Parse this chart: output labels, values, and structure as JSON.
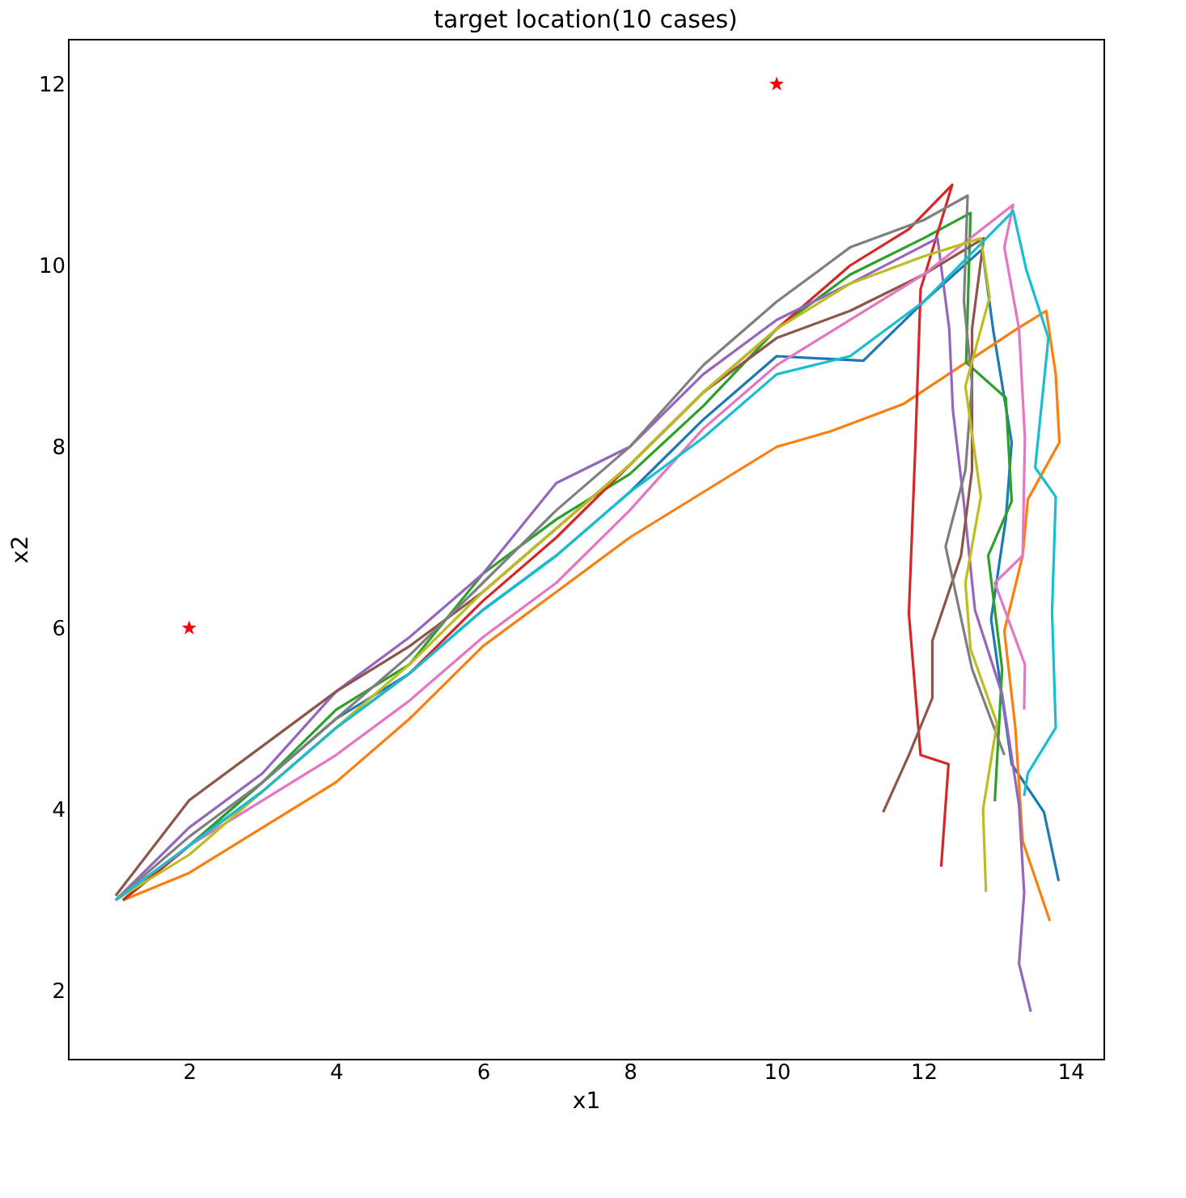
{
  "chart_data": {
    "type": "line",
    "title": "target location(10 cases)",
    "xlabel": "x1",
    "ylabel": "x2",
    "xlim": [
      0.35,
      14.45
    ],
    "ylim": [
      1.25,
      12.5
    ],
    "xticks": [
      2,
      4,
      6,
      8,
      10,
      12,
      14
    ],
    "yticks": [
      2,
      4,
      6,
      8,
      10,
      12
    ],
    "grid": false,
    "line_style": "solid",
    "marker": "none",
    "series": [
      {
        "color": "#1f77b4",
        "x": [
          1.1,
          2,
          3,
          4,
          5,
          6,
          7,
          8,
          9,
          10,
          11.18,
          12,
          12.8,
          12.95,
          13.2,
          13.12,
          12.92,
          13.2,
          13.64,
          13.84
        ],
        "values": [
          3.0,
          3.6,
          4.3,
          5.0,
          5.5,
          6.2,
          6.8,
          7.5,
          8.3,
          9.0,
          8.95,
          9.6,
          10.18,
          9.28,
          8.05,
          7.2,
          6.1,
          4.5,
          3.97,
          3.21
        ]
      },
      {
        "color": "#ff7f0e",
        "x": [
          1.1,
          2,
          3,
          4,
          5,
          6,
          7,
          8,
          9,
          10,
          10.73,
          11.72,
          13.27,
          13.67,
          13.8,
          13.85,
          13.42,
          13.35,
          13.1,
          13.25,
          13.35,
          13.72
        ],
        "values": [
          3.0,
          3.3,
          3.8,
          4.3,
          5.0,
          5.8,
          6.4,
          7.0,
          7.5,
          8.0,
          8.17,
          8.47,
          9.3,
          9.5,
          8.8,
          8.05,
          7.42,
          6.8,
          5.97,
          4.9,
          3.65,
          2.77
        ]
      },
      {
        "color": "#2ca02c",
        "x": [
          1.1,
          2,
          3,
          4,
          5,
          6,
          7,
          8,
          9,
          10,
          11,
          12,
          12.64,
          12.58,
          13.12,
          13.2,
          12.88,
          13.07,
          12.97
        ],
        "values": [
          3.0,
          3.6,
          4.3,
          5.1,
          5.6,
          6.6,
          7.2,
          7.7,
          8.45,
          9.3,
          9.9,
          10.3,
          10.58,
          8.93,
          8.54,
          7.4,
          6.8,
          5.55,
          4.09
        ]
      },
      {
        "color": "#d62728",
        "x": [
          1.1,
          2,
          3,
          4,
          5,
          6,
          7,
          8,
          9,
          10,
          11,
          11.8,
          12.39,
          11.96,
          11.89,
          11.8,
          11.96,
          12.34,
          12.24
        ],
        "values": [
          3.0,
          3.6,
          4.2,
          4.9,
          5.5,
          6.3,
          7.0,
          7.8,
          8.6,
          9.3,
          10.0,
          10.4,
          10.89,
          9.74,
          8.04,
          6.16,
          4.6,
          4.5,
          3.37
        ]
      },
      {
        "color": "#9467bd",
        "x": [
          1.0,
          2,
          3,
          4,
          5,
          6,
          7,
          8,
          9,
          10,
          11,
          12.19,
          12.35,
          12.4,
          12.54,
          12.7,
          13.07,
          13.3,
          13.37,
          13.3,
          13.46
        ],
        "values": [
          3.0,
          3.8,
          4.4,
          5.3,
          5.9,
          6.6,
          7.6,
          8.0,
          8.8,
          9.4,
          9.8,
          10.3,
          9.3,
          8.4,
          7.45,
          6.2,
          5.27,
          4.05,
          3.08,
          2.3,
          1.77
        ]
      },
      {
        "color": "#8c564b",
        "x": [
          1.0,
          2,
          3,
          4,
          5,
          6,
          7,
          8,
          9,
          10,
          11,
          12,
          12.82,
          12.66,
          12.66,
          12.51,
          12.12,
          12.12,
          11.8,
          11.45
        ],
        "values": [
          3.05,
          4.1,
          4.7,
          5.3,
          5.8,
          6.4,
          7.1,
          7.8,
          8.6,
          9.2,
          9.5,
          9.9,
          10.3,
          9.3,
          7.74,
          6.8,
          5.86,
          5.23,
          4.6,
          3.97
        ]
      },
      {
        "color": "#e377c2",
        "x": [
          1.0,
          2,
          3,
          4,
          5,
          6,
          7,
          8,
          9,
          10,
          11,
          12,
          13.22,
          13.1,
          13.3,
          13.38,
          13.35,
          12.97,
          13.38,
          13.37
        ],
        "values": [
          3.0,
          3.6,
          4.1,
          4.6,
          5.2,
          5.9,
          6.5,
          7.3,
          8.2,
          8.9,
          9.4,
          9.9,
          10.67,
          10.2,
          9.3,
          8.1,
          6.8,
          6.5,
          5.6,
          5.1
        ]
      },
      {
        "color": "#7f7f7f",
        "x": [
          1.0,
          2,
          3,
          4,
          5,
          6,
          7,
          8,
          9,
          10,
          11,
          12,
          12.6,
          12.55,
          12.66,
          12.57,
          12.3,
          12.66,
          13.1
        ],
        "values": [
          3.0,
          3.7,
          4.3,
          5.0,
          5.7,
          6.5,
          7.3,
          8.0,
          8.9,
          9.6,
          10.2,
          10.5,
          10.77,
          9.6,
          8.7,
          7.74,
          6.9,
          5.55,
          4.6
        ]
      },
      {
        "color": "#bcbd22",
        "x": [
          1.0,
          2,
          3,
          4,
          5,
          6,
          7,
          8,
          9,
          10,
          11,
          12,
          12.78,
          12.9,
          12.57,
          12.78,
          12.57,
          12.64,
          13.0,
          12.81,
          12.85
        ],
        "values": [
          3.0,
          3.5,
          4.2,
          4.9,
          5.6,
          6.4,
          7.1,
          7.8,
          8.6,
          9.3,
          9.8,
          10.1,
          10.3,
          9.65,
          8.67,
          7.45,
          6.5,
          5.77,
          4.95,
          4.0,
          3.09
        ]
      },
      {
        "color": "#17becf",
        "x": [
          1.0,
          2,
          3,
          4,
          5,
          6,
          7,
          8,
          9,
          10,
          11,
          12,
          13.22,
          13.4,
          13.7,
          13.52,
          13.8,
          13.75,
          13.8,
          13.42,
          13.37
        ],
        "values": [
          3.0,
          3.6,
          4.2,
          4.9,
          5.5,
          6.2,
          6.8,
          7.5,
          8.1,
          8.8,
          9.0,
          9.6,
          10.6,
          9.95,
          9.2,
          7.77,
          7.45,
          6.18,
          4.9,
          4.4,
          4.15
        ]
      },
      {
        "type": "scatter",
        "marker": "star",
        "color": "#ff0000",
        "x": [
          2,
          10
        ],
        "values": [
          6,
          12
        ]
      }
    ]
  }
}
